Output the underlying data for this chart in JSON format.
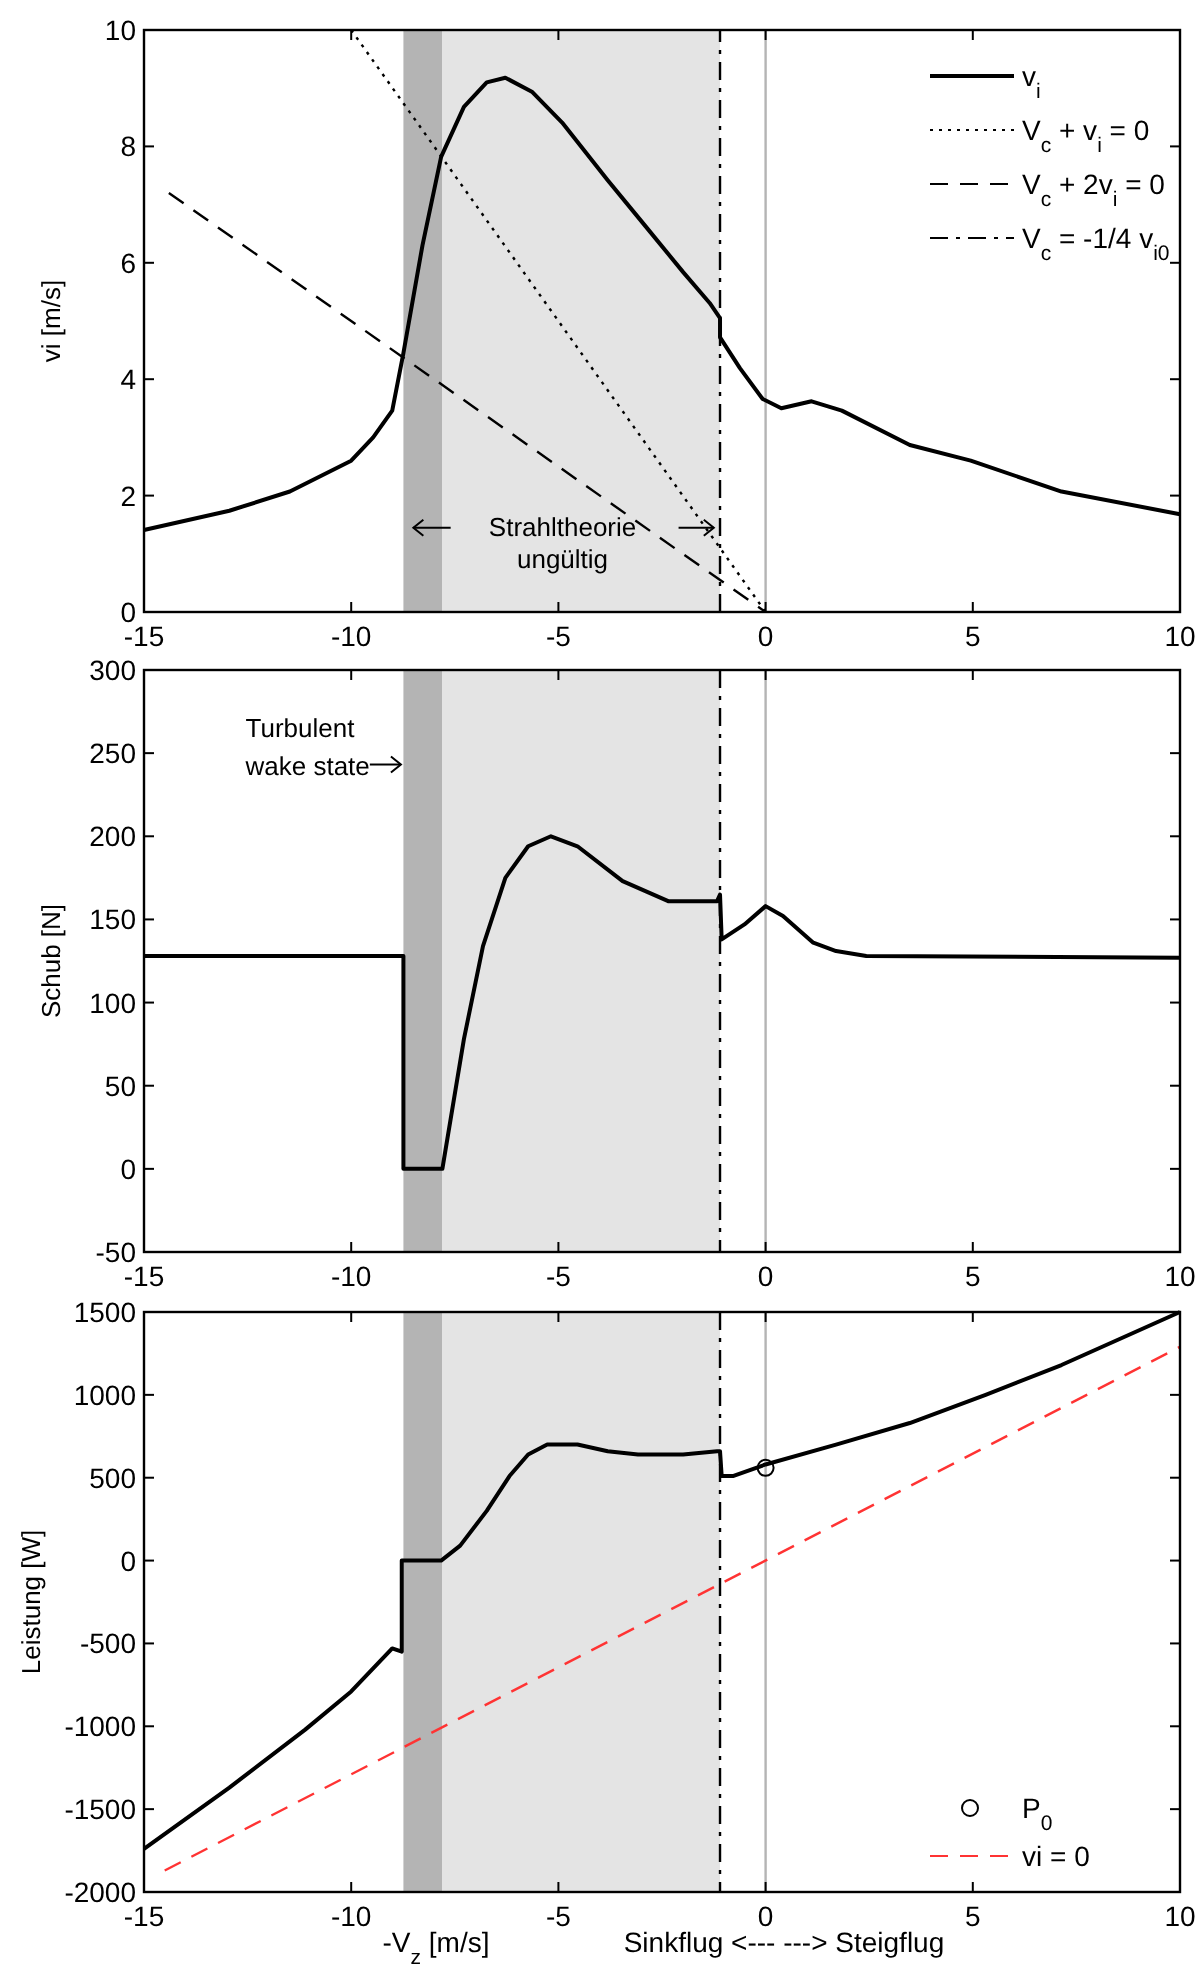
{
  "chart_data": [
    {
      "type": "line",
      "ylabel": "vi [m/s]",
      "xlim": [
        -15,
        10
      ],
      "xticks": [
        -15,
        -10,
        -5,
        0,
        5,
        10
      ],
      "ylim": [
        0,
        10
      ],
      "yticks": [
        0,
        2,
        4,
        6,
        8,
        10
      ],
      "legend": "top right",
      "grid": false,
      "series": [
        {
          "name": "v$_{i}$",
          "color": "#000000",
          "line_style": "solid",
          "x": [
            -15,
            -12.94,
            -11.48,
            -10,
            -9.47,
            -9.01,
            -8.74,
            -8.28,
            -7.83,
            -7.28,
            -6.73,
            -6.28,
            -5.64,
            -4.91,
            -3.81,
            -2.9,
            -1.99,
            -1.35,
            -1.1,
            -1.1,
            -0.62,
            -0.07,
            0.38,
            1.11,
            1.84,
            3.48,
            4.95,
            7.14,
            10
          ],
          "values": [
            1.41,
            1.74,
            2.07,
            2.6,
            3.0,
            3.46,
            4.45,
            6.3,
            7.82,
            8.68,
            9.1,
            9.18,
            8.94,
            8.41,
            7.42,
            6.63,
            5.84,
            5.31,
            5.05,
            4.72,
            4.19,
            3.66,
            3.5,
            3.62,
            3.46,
            2.87,
            2.6,
            2.07,
            1.68
          ]
        },
        {
          "name": "V$_{c}$ + v$_{i}$ = 0",
          "color": "#000000",
          "line_style": "dotted",
          "x": [
            -10,
            0
          ],
          "values": [
            10,
            0
          ]
        },
        {
          "name": "V$_{c}$ + 2v$_{i}$ = 0",
          "color": "#000000",
          "line_style": "dashed",
          "x": [
            -14.4,
            0
          ],
          "values": [
            7.2,
            0
          ]
        },
        {
          "name": "V$_{c}$ = -1/4 v$_{i0}$",
          "color": "#000000",
          "line_style": "dashdot",
          "x": [
            -1.1,
            -1.1
          ],
          "values": [
            0,
            10
          ]
        }
      ],
      "bands": [
        {
          "axis": "x",
          "from": -8.74,
          "to": -7.8,
          "color": "#b4b4b4"
        },
        {
          "axis": "x",
          "from": -7.8,
          "to": -1.1,
          "color": "#e4e4e4"
        }
      ],
      "ref_lines": [
        {
          "axis": "x",
          "value": 0,
          "color": "#b4b4b4",
          "line_style": "solid"
        }
      ],
      "annotations": [
        "Strahltheorie\nungültig"
      ]
    },
    {
      "type": "line",
      "ylabel": "Schub [N]",
      "xlim": [
        -15,
        10
      ],
      "xticks": [
        -15,
        -10,
        -5,
        0,
        5,
        10
      ],
      "ylim": [
        -50,
        300
      ],
      "yticks": [
        -50,
        0,
        50,
        100,
        150,
        200,
        250,
        300
      ],
      "grid": false,
      "series": [
        {
          "color": "#000000",
          "line_style": "solid",
          "x": [
            -15,
            -8.74,
            -8.74,
            -7.8,
            -7.28,
            -6.82,
            -6.28,
            -5.73,
            -5.18,
            -4.54,
            -3.45,
            -2.35,
            -1.17,
            -1.1,
            -1.06,
            -0.51,
            0,
            0.42,
            1.15,
            1.7,
            2.43,
            10
          ],
          "values": [
            128,
            128,
            0,
            0,
            78,
            134,
            175,
            194,
            200,
            194,
            173,
            161,
            161,
            165,
            138,
            147,
            158,
            152,
            136,
            131,
            128,
            127
          ]
        }
      ],
      "bands": [
        {
          "axis": "x",
          "from": -8.74,
          "to": -7.8,
          "color": "#b4b4b4"
        },
        {
          "axis": "x",
          "from": -7.8,
          "to": -1.1,
          "color": "#e4e4e4"
        }
      ],
      "ref_lines": [
        {
          "axis": "x",
          "value": 0,
          "color": "#b4b4b4",
          "line_style": "solid"
        },
        {
          "axis": "x",
          "value": -1.1,
          "color": "#000000",
          "line_style": "dashdot"
        }
      ],
      "annotations": [
        "Turbulent\nwake state"
      ]
    },
    {
      "type": "line",
      "xlabel": "-V$_{z}$ [m/s]",
      "ylabel": "Leistung [W]",
      "xlim": [
        -15,
        10
      ],
      "xticks": [
        -15,
        -10,
        -5,
        0,
        5,
        10
      ],
      "ylim": [
        -2000,
        1500
      ],
      "yticks": [
        -2000,
        -1500,
        -1000,
        -500,
        0,
        500,
        1000,
        1500
      ],
      "legend": "bottom right",
      "grid": false,
      "series": [
        {
          "color": "#000000",
          "line_style": "solid",
          "x": [
            -15,
            -12.94,
            -11.11,
            -10,
            -9.01,
            -8.78,
            -8.78,
            -7.83,
            -7.37,
            -6.73,
            -6.18,
            -5.73,
            -5.27,
            -4.54,
            -3.81,
            -3.08,
            -1.99,
            -1.17,
            -1.1,
            -1.06,
            -0.79,
            0,
            1.7,
            3.48,
            5.31,
            7.14,
            10
          ],
          "values": [
            -1740,
            -1370,
            -1020,
            -790,
            -530,
            -550,
            0,
            0,
            90,
            300,
            510,
            640,
            700,
            700,
            660,
            640,
            640,
            660,
            660,
            510,
            510,
            580,
            700,
            830,
            1000,
            1180,
            1500
          ]
        },
        {
          "name": "P$_{0}$",
          "type": "scatter",
          "marker": "circle",
          "color": "#000000",
          "x": [
            0
          ],
          "values": [
            560
          ]
        },
        {
          "name": "vi = 0",
          "color": "#ff3333",
          "line_style": "dashed",
          "x": [
            -14.5,
            10
          ],
          "values": [
            -1870,
            1290
          ]
        }
      ],
      "bands": [
        {
          "axis": "x",
          "from": -8.74,
          "to": -7.8,
          "color": "#b4b4b4"
        },
        {
          "axis": "x",
          "from": -7.8,
          "to": -1.1,
          "color": "#e4e4e4"
        }
      ],
      "ref_lines": [
        {
          "axis": "x",
          "value": 0,
          "color": "#b4b4b4",
          "line_style": "solid"
        },
        {
          "axis": "x",
          "value": -1.1,
          "color": "#000000",
          "line_style": "dashdot"
        }
      ],
      "annotations": [
        "Sinkflug <---  ---> Steigflug"
      ]
    }
  ]
}
